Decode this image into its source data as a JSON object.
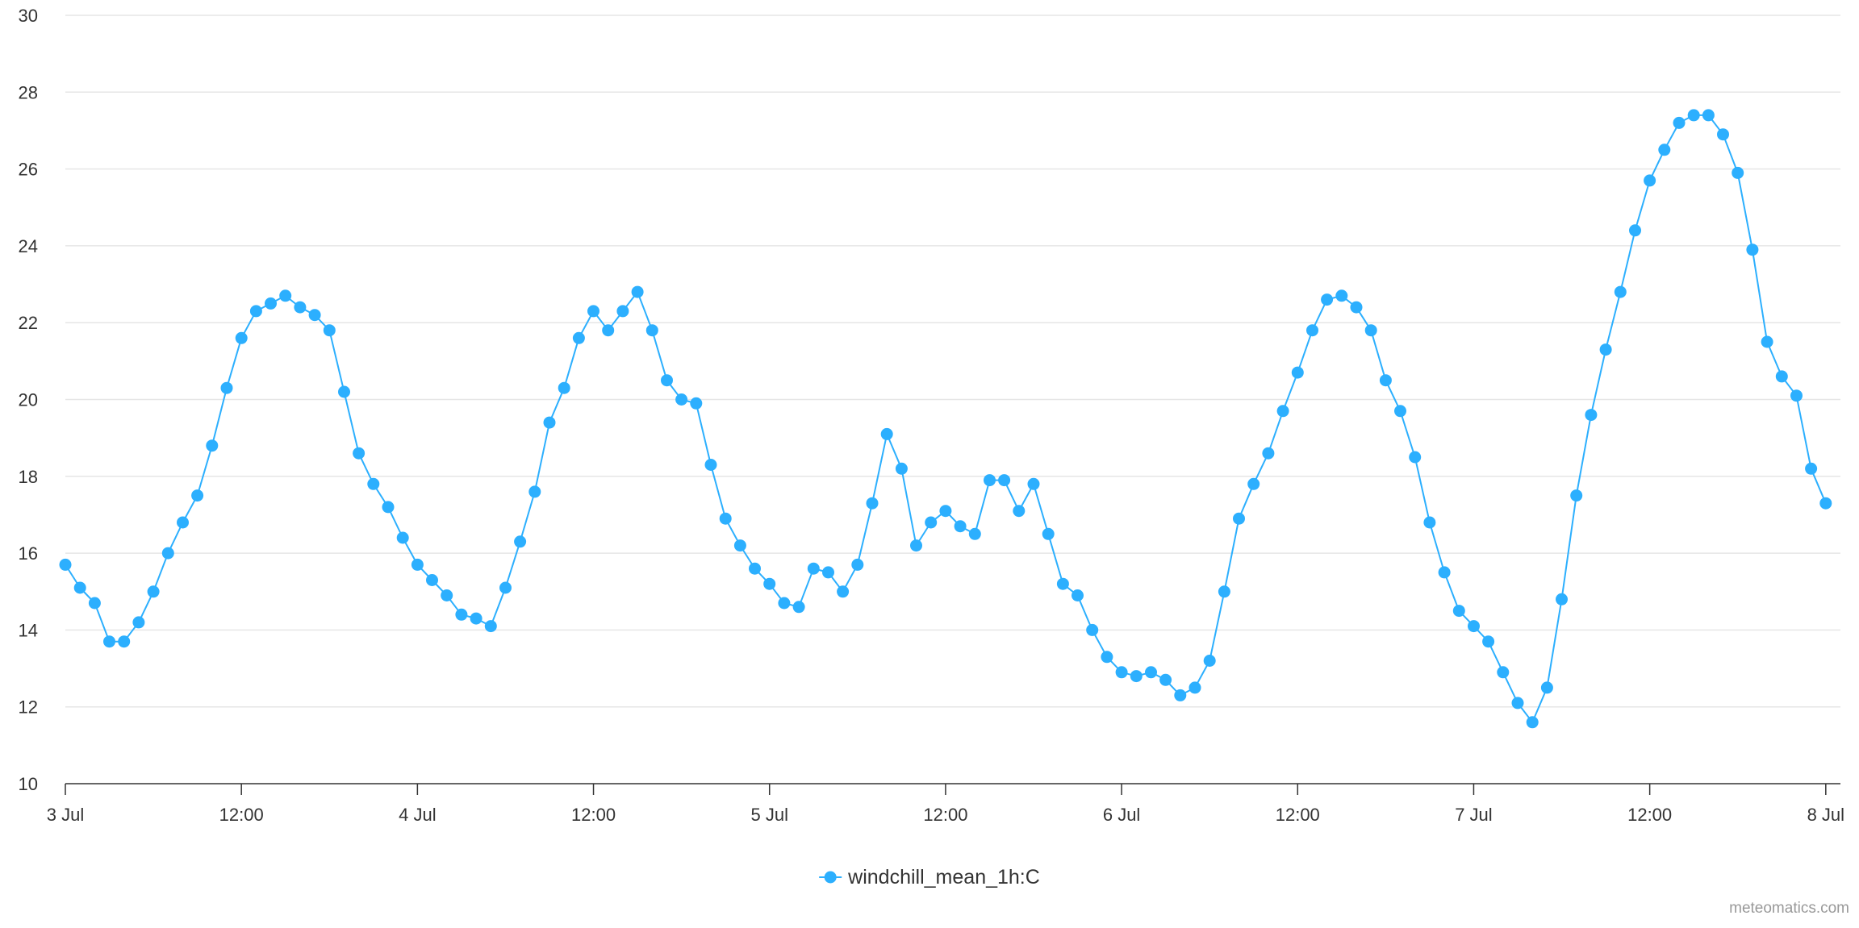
{
  "chart_data": {
    "type": "line",
    "title": "",
    "xlabel": "",
    "ylabel": "",
    "ylim": [
      10,
      30
    ],
    "yticks": [
      10,
      12,
      14,
      16,
      18,
      20,
      22,
      24,
      26,
      28,
      30
    ],
    "xticks": [
      {
        "x": "2023-07-03T00:00",
        "label": "3 Jul"
      },
      {
        "x": "2023-07-03T12:00",
        "label": "12:00"
      },
      {
        "x": "2023-07-04T00:00",
        "label": "4 Jul"
      },
      {
        "x": "2023-07-04T12:00",
        "label": "12:00"
      },
      {
        "x": "2023-07-05T00:00",
        "label": "5 Jul"
      },
      {
        "x": "2023-07-05T12:00",
        "label": "12:00"
      },
      {
        "x": "2023-07-06T00:00",
        "label": "6 Jul"
      },
      {
        "x": "2023-07-06T12:00",
        "label": "12:00"
      },
      {
        "x": "2023-07-07T00:00",
        "label": "7 Jul"
      },
      {
        "x": "2023-07-07T12:00",
        "label": "12:00"
      },
      {
        "x": "2023-07-08T00:00",
        "label": "8 Jul"
      }
    ],
    "xlim": [
      "2023-07-03T00:00",
      "2023-07-08T01:00"
    ],
    "x_start": "2023-07-03T00:00",
    "x_step_hours": 1,
    "grid": true,
    "legend": "bottom-center",
    "series": [
      {
        "name": "windchill_mean_1h:C",
        "color": "#2caffe",
        "values": [
          15.7,
          15.1,
          14.7,
          13.7,
          13.7,
          14.2,
          15.0,
          16.0,
          16.8,
          17.5,
          18.8,
          20.3,
          21.6,
          22.3,
          22.5,
          22.7,
          22.4,
          22.2,
          21.8,
          20.2,
          18.6,
          17.8,
          17.2,
          16.4,
          15.7,
          15.3,
          14.9,
          14.4,
          14.3,
          14.1,
          15.1,
          16.3,
          17.6,
          19.4,
          20.3,
          21.6,
          22.3,
          21.8,
          22.3,
          22.8,
          21.8,
          20.5,
          20.0,
          19.9,
          18.3,
          16.9,
          16.2,
          15.6,
          15.2,
          14.7,
          14.6,
          15.6,
          15.5,
          15.0,
          15.7,
          17.3,
          19.1,
          18.2,
          16.2,
          16.8,
          17.1,
          16.7,
          16.5,
          17.9,
          17.9,
          17.1,
          17.8,
          16.5,
          15.2,
          14.9,
          14.0,
          13.3,
          12.9,
          12.8,
          12.9,
          12.7,
          12.3,
          12.5,
          13.2,
          15.0,
          16.9,
          17.8,
          18.6,
          19.7,
          20.7,
          21.8,
          22.6,
          22.7,
          22.4,
          21.8,
          20.5,
          19.7,
          18.5,
          16.8,
          15.5,
          14.5,
          14.1,
          13.7,
          12.9,
          12.1,
          11.6,
          12.5,
          14.8,
          17.5,
          19.6,
          21.3,
          22.8,
          24.4,
          25.7,
          26.5,
          27.2,
          27.4,
          27.4,
          26.9,
          25.9,
          23.9,
          21.5,
          20.6,
          20.1,
          18.2,
          17.3
        ]
      }
    ]
  },
  "credit": "meteomatics.com"
}
